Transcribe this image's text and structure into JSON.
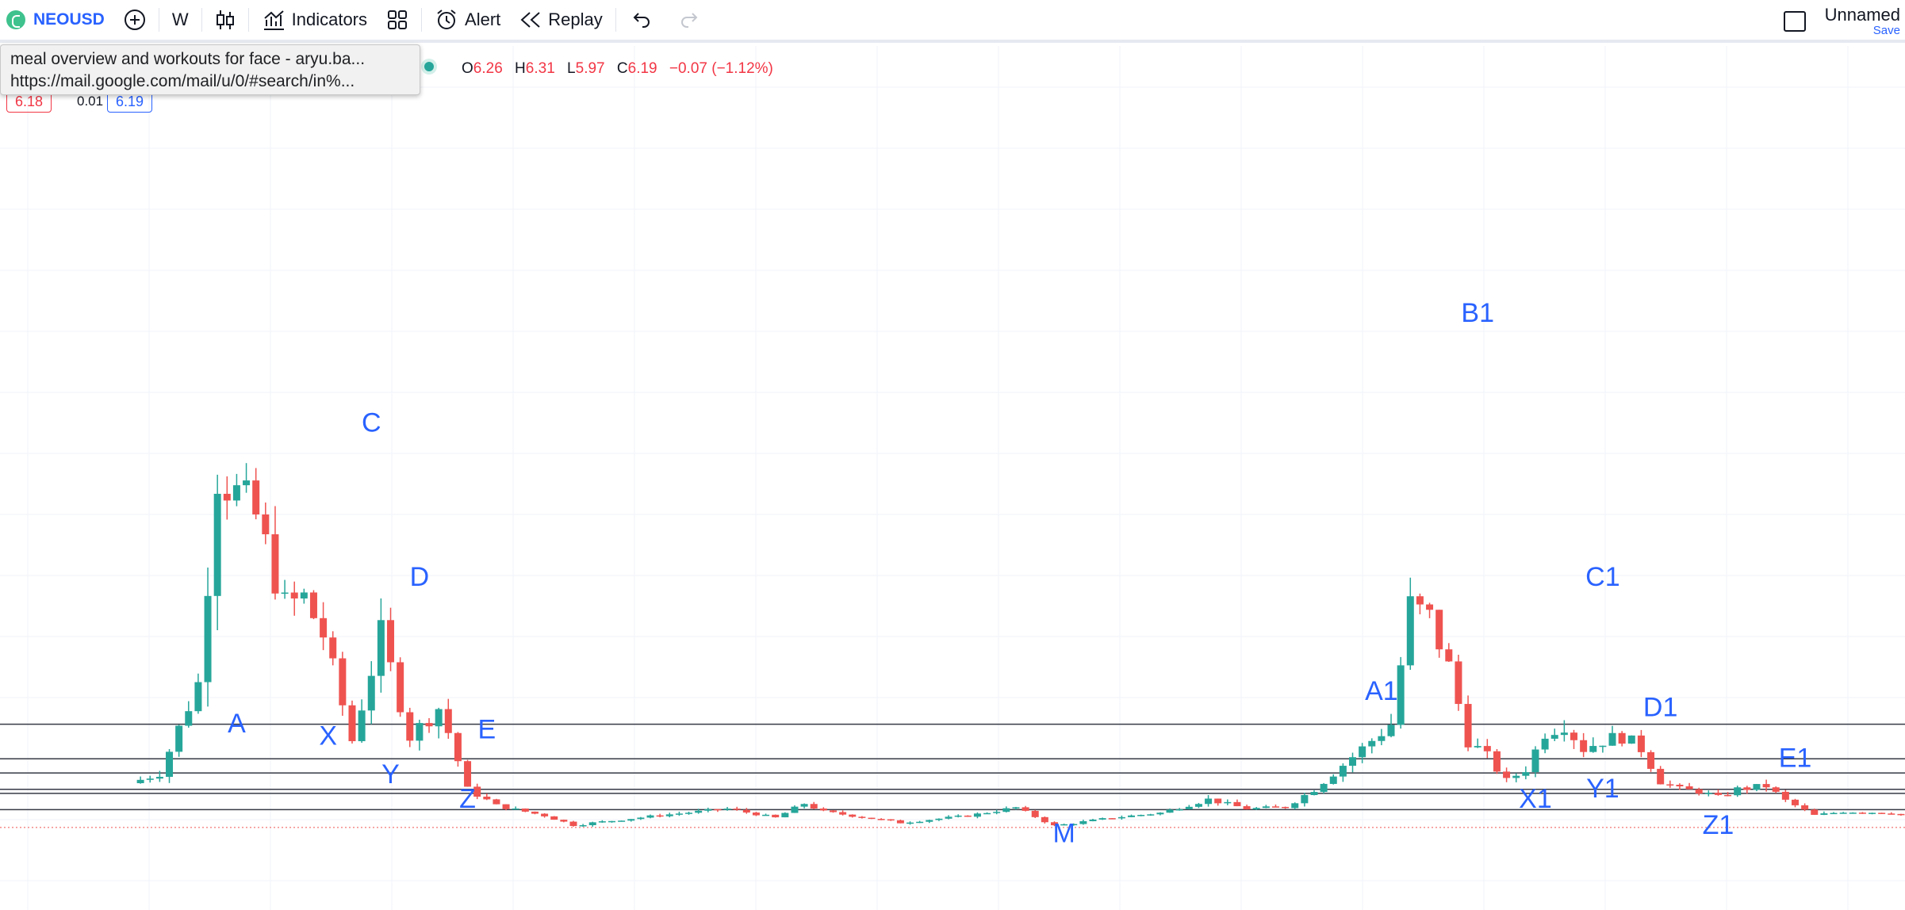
{
  "toolbar": {
    "symbol": "NEOUSD",
    "add_icon": "plus-circle-icon",
    "interval": "W",
    "chart_type_icon": "candles-icon",
    "indicators_label": "Indicators",
    "layouts_icon": "grid-icon",
    "alert_label": "Alert",
    "replay_label": "Replay",
    "undo_icon": "undo-icon",
    "redo_icon": "redo-icon",
    "layout_name": "Unnamed",
    "save_label": "Save"
  },
  "tooltip": {
    "line1": "meal overview and workouts for face - aryu.ba...",
    "line2": "https://mail.google.com/mail/u/0/#search/in%..."
  },
  "legend": {
    "o_label": "O",
    "o": "6.26",
    "h_label": "H",
    "h": "6.31",
    "l_label": "L",
    "l": "5.97",
    "c_label": "C",
    "c": "6.19",
    "change": "−0.07 (−1.12%)",
    "bid": "6.18",
    "spread": "0.01",
    "ask": "6.19"
  },
  "colors": {
    "up": "#26a69a",
    "down": "#ef5350",
    "label": "#2962ff",
    "hline": "#363a45"
  },
  "chart_data": {
    "type": "candlestick",
    "symbol": "NEOUSD",
    "interval": "W",
    "ylim": [
      0,
      160
    ],
    "grid": true,
    "x_range": [
      0,
      200
    ],
    "horizontal_levels": [
      26,
      17.5,
      14,
      10,
      9,
      5
    ],
    "anchors": [
      [
        0,
        11.5
      ],
      [
        3,
        14
      ],
      [
        7,
        36
      ],
      [
        9,
        88
      ],
      [
        13,
        77
      ],
      [
        16,
        55
      ],
      [
        18,
        57
      ],
      [
        20,
        48
      ],
      [
        23,
        22
      ],
      [
        26,
        48
      ],
      [
        29,
        23
      ],
      [
        32,
        30
      ],
      [
        33,
        24
      ],
      [
        35,
        10
      ],
      [
        38,
        6
      ],
      [
        43,
        3.5
      ],
      [
        46,
        1.2
      ],
      [
        55,
        3.6
      ],
      [
        62,
        5.2
      ],
      [
        67,
        3
      ],
      [
        70,
        6.5
      ],
      [
        72,
        4.5
      ],
      [
        80,
        1.8
      ],
      [
        87,
        3.5
      ],
      [
        92,
        5.5
      ],
      [
        96,
        1.0
      ],
      [
        102,
        3
      ],
      [
        107,
        4.2
      ],
      [
        112,
        7.5
      ],
      [
        116,
        5.2
      ],
      [
        120,
        5.6
      ],
      [
        123,
        10
      ],
      [
        127,
        18
      ],
      [
        129,
        22
      ],
      [
        131,
        26
      ],
      [
        133,
        55
      ],
      [
        135,
        52
      ],
      [
        137,
        40
      ],
      [
        139,
        22
      ],
      [
        141,
        18
      ],
      [
        143,
        12
      ],
      [
        145,
        15
      ],
      [
        147,
        24
      ],
      [
        149,
        26
      ],
      [
        151,
        20
      ],
      [
        153,
        22
      ],
      [
        155,
        23
      ],
      [
        157,
        20
      ],
      [
        159,
        12
      ],
      [
        161,
        10
      ],
      [
        163,
        9.5
      ],
      [
        165,
        8
      ],
      [
        167,
        10
      ],
      [
        170,
        10.8
      ],
      [
        172,
        7.2
      ],
      [
        175,
        3.6
      ],
      [
        178,
        4.5
      ],
      [
        183,
        4.2
      ],
      [
        187,
        2.4
      ],
      [
        190,
        2.0
      ],
      [
        194,
        1.2
      ]
    ],
    "last_close": 6.19,
    "annotations": [
      {
        "text": "A",
        "x": 11,
        "y": 24
      },
      {
        "text": "X",
        "x": 20.5,
        "y": 21
      },
      {
        "text": "C",
        "x": 25,
        "y": 98
      },
      {
        "text": "Y",
        "x": 27,
        "y": 11.5
      },
      {
        "text": "D",
        "x": 30,
        "y": 60
      },
      {
        "text": "E",
        "x": 37,
        "y": 22.5
      },
      {
        "text": "Z",
        "x": 35,
        "y": 5.5
      },
      {
        "text": "M",
        "x": 97,
        "y": -3
      },
      {
        "text": "A1",
        "x": 130,
        "y": 32
      },
      {
        "text": "B1",
        "x": 140,
        "y": 125
      },
      {
        "text": "C1",
        "x": 153,
        "y": 60
      },
      {
        "text": "D1",
        "x": 159,
        "y": 28
      },
      {
        "text": "E1",
        "x": 173,
        "y": 15.5
      },
      {
        "text": "X1",
        "x": 146,
        "y": 5.5
      },
      {
        "text": "Y1",
        "x": 153,
        "y": 8
      },
      {
        "text": "Z1",
        "x": 165,
        "y": -1
      }
    ]
  }
}
